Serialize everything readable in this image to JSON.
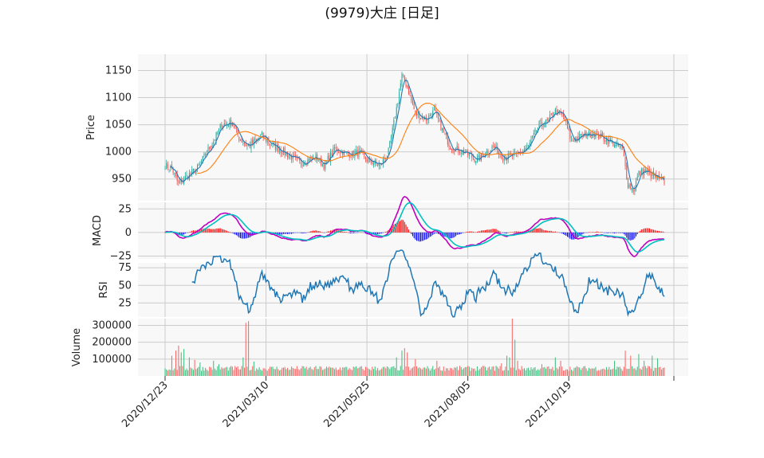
{
  "title": "(9979)大庄 [日足]",
  "colors": {
    "up": "#26a69a",
    "down": "#ef5350",
    "vol_up": "#3dbd7d",
    "vol_down": "#fa6262",
    "ma_short": "#1f77b4",
    "ma_long": "#ff7f0e",
    "macd_line": "#c000c0",
    "macd_signal": "#00c0c0",
    "hist_pos": "#ff0000",
    "hist_neg": "#0000ff",
    "rsi": "#1f77b4",
    "grid": "#cccccc",
    "panel_bg": "#f8f8f8"
  },
  "chart_data": {
    "type": "candlestick",
    "x_tick_labels": [
      "2020/12/23",
      "2021/03/10",
      "2021/05/25",
      "2021/08/05",
      "2021/10/19"
    ],
    "price": {
      "ylabel": "Price",
      "ylim": [
        910,
        1180
      ],
      "yticks": [
        950,
        1000,
        1050,
        1100,
        1150
      ],
      "key_points": [
        [
          0,
          975
        ],
        [
          5,
          970
        ],
        [
          10,
          940
        ],
        [
          16,
          955
        ],
        [
          24,
          970
        ],
        [
          36,
          1020
        ],
        [
          42,
          1050
        ],
        [
          50,
          1055
        ],
        [
          55,
          1025
        ],
        [
          62,
          1010
        ],
        [
          72,
          1030
        ],
        [
          78,
          1015
        ],
        [
          88,
          1000
        ],
        [
          100,
          980
        ],
        [
          112,
          990
        ],
        [
          118,
          975
        ],
        [
          126,
          1005
        ],
        [
          138,
          995
        ],
        [
          144,
          1000
        ],
        [
          150,
          985
        ],
        [
          160,
          975
        ],
        [
          166,
          1000
        ],
        [
          172,
          1080
        ],
        [
          176,
          1140
        ],
        [
          180,
          1120
        ],
        [
          186,
          1070
        ],
        [
          194,
          1060
        ],
        [
          200,
          1075
        ],
        [
          206,
          1040
        ],
        [
          212,
          1010
        ],
        [
          222,
          1000
        ],
        [
          232,
          985
        ],
        [
          244,
          1010
        ],
        [
          252,
          990
        ],
        [
          262,
          995
        ],
        [
          270,
          1010
        ],
        [
          278,
          1050
        ],
        [
          284,
          1055
        ],
        [
          290,
          1075
        ],
        [
          296,
          1065
        ],
        [
          302,
          1020
        ],
        [
          310,
          1030
        ],
        [
          318,
          1035
        ],
        [
          326,
          1025
        ],
        [
          334,
          1015
        ],
        [
          340,
          1005
        ],
        [
          344,
          940
        ],
        [
          348,
          930
        ],
        [
          352,
          960
        ],
        [
          356,
          965
        ],
        [
          360,
          960
        ],
        [
          366,
          950
        ],
        [
          370,
          945
        ]
      ]
    },
    "macd": {
      "ylabel": "MACD",
      "yticks": [
        -25,
        0,
        25
      ],
      "ylim": [
        -28,
        32
      ]
    },
    "rsi": {
      "ylabel": "RSI",
      "yticks": [
        25,
        50,
        75
      ],
      "ylim": [
        5,
        82
      ],
      "start_index": 20
    },
    "volume": {
      "ylabel": "Volume",
      "yticks": [
        100000,
        200000,
        300000
      ],
      "ytick_labels": [
        "100000",
        "200000",
        "300000"
      ],
      "ylim": [
        0,
        340000
      ],
      "spikes": [
        [
          5,
          120000
        ],
        [
          8,
          150000
        ],
        [
          10,
          180000
        ],
        [
          12,
          140000
        ],
        [
          14,
          160000
        ],
        [
          18,
          110000
        ],
        [
          22,
          95000
        ],
        [
          26,
          80000
        ],
        [
          36,
          90000
        ],
        [
          40,
          70000
        ],
        [
          58,
          110000
        ],
        [
          60,
          315000
        ],
        [
          62,
          325000
        ],
        [
          66,
          85000
        ],
        [
          172,
          110000
        ],
        [
          176,
          150000
        ],
        [
          178,
          165000
        ],
        [
          180,
          140000
        ],
        [
          186,
          100000
        ],
        [
          202,
          90000
        ],
        [
          246,
          60000
        ],
        [
          250,
          75000
        ],
        [
          254,
          120000
        ],
        [
          256,
          110000
        ],
        [
          258,
          340000
        ],
        [
          260,
          215000
        ],
        [
          262,
          90000
        ],
        [
          280,
          70000
        ],
        [
          290,
          110000
        ],
        [
          294,
          90000
        ],
        [
          334,
          90000
        ],
        [
          342,
          150000
        ],
        [
          346,
          120000
        ],
        [
          352,
          130000
        ],
        [
          356,
          90000
        ],
        [
          362,
          120000
        ],
        [
          366,
          105000
        ]
      ]
    },
    "n_bars": 372,
    "x_tick_index": [
      0,
      75,
      150,
      225,
      300
    ]
  }
}
